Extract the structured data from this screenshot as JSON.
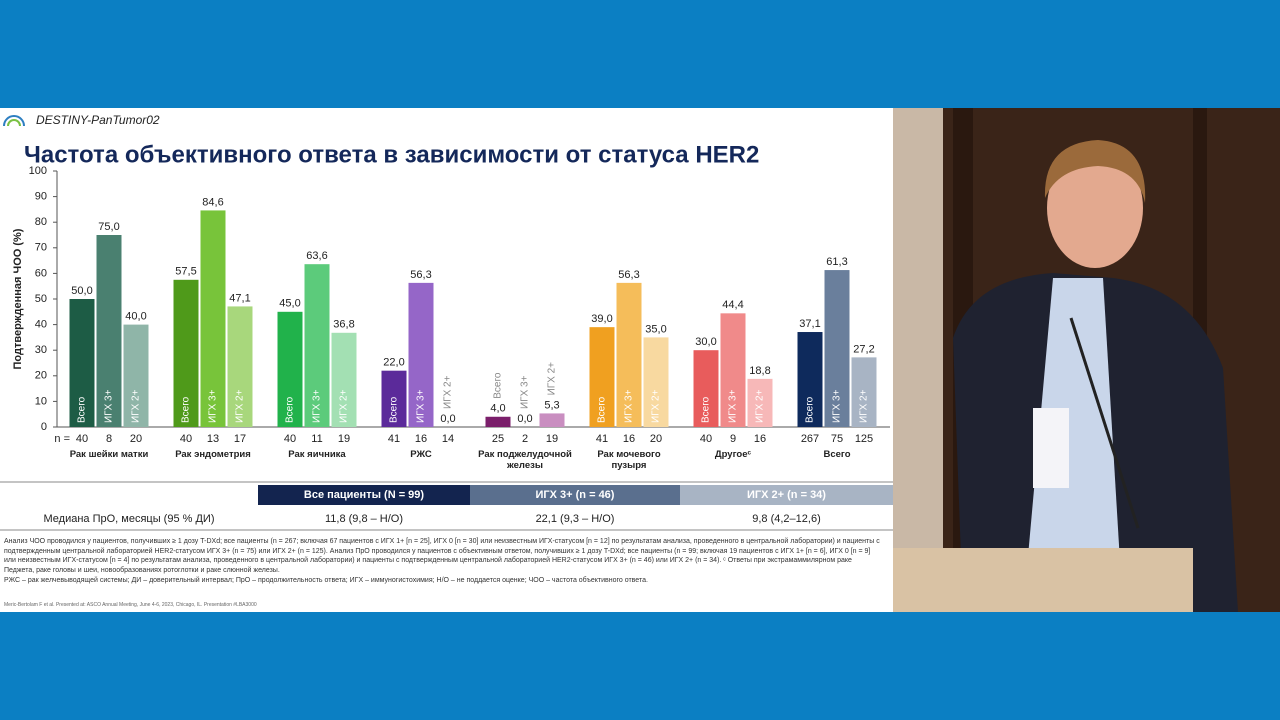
{
  "header": {
    "brand": "DESTINY-PanTumor02",
    "title": "Частота объективного ответа в зависимости от статуса HER2"
  },
  "chart_data": {
    "type": "grouped-bar",
    "y_label": "Подтвержденная ЧОО (%)",
    "ylim": [
      0,
      100
    ],
    "yticks": [
      0,
      10,
      20,
      30,
      40,
      50,
      60,
      70,
      80,
      90,
      100
    ],
    "grid": false,
    "n_label": "n =",
    "categories": [
      "Рак шейки матки",
      "Рак эндометрия",
      "Рак яичника",
      "РЖС",
      "Рак поджелудочной железы",
      "Рак мочевого пузыря",
      "Другоеᶜ",
      "Всего"
    ],
    "series": [
      {
        "name": "Всего",
        "values": [
          50,
          57.5,
          45,
          22,
          4,
          39,
          30,
          37.1
        ],
        "value_labels": [
          "50,0",
          "57,5",
          "45,0",
          "22,0",
          "4,0",
          "39,0",
          "30,0",
          "37,1"
        ],
        "n": [
          40,
          40,
          40,
          41,
          25,
          41,
          40,
          267
        ],
        "colors": [
          "#1d5c45",
          "#4f9a1a",
          "#21b24b",
          "#5b2a9a",
          "#7b1f6b",
          "#f0a020",
          "#e85c5c",
          "#0e2a5c"
        ]
      },
      {
        "name": "ИГХ 3+",
        "values": [
          75,
          84.6,
          63.6,
          56.3,
          0,
          56.3,
          44.4,
          61.3
        ],
        "value_labels": [
          "75,0",
          "84,6",
          "63,6",
          "56,3",
          "0,0",
          "56,3",
          "44,4",
          "61,3"
        ],
        "n": [
          8,
          13,
          11,
          16,
          2,
          16,
          9,
          75
        ],
        "colors": [
          "#4a8070",
          "#78c43a",
          "#5ccb7b",
          "#9566c8",
          "#b5579f",
          "#f5bd5a",
          "#f08a8a",
          "#6a7f9c"
        ]
      },
      {
        "name": "ИГХ 2+",
        "values": [
          40,
          47.1,
          36.8,
          0,
          5.3,
          35,
          18.8,
          27.2
        ],
        "value_labels": [
          "40,0",
          "47,1",
          "36,8",
          "0,0",
          "5,3",
          "35,0",
          "18,8",
          "27,2"
        ],
        "n": [
          20,
          17,
          19,
          14,
          19,
          20,
          16,
          125
        ],
        "colors": [
          "#8fb5a8",
          "#a8d77c",
          "#a3e0b3",
          "#c9b3e3",
          "#c98ec0",
          "#f8d9a0",
          "#f7b8b8",
          "#a8b4c4"
        ]
      }
    ]
  },
  "table": {
    "header": [
      "Все пациенты (N = 99)",
      "ИГХ 3+ (n = 46)",
      "ИГХ 2+ (n = 34)"
    ],
    "rows": [
      [
        "Медиана ПрО, месяцы (95 % ДИ)",
        "11,8 (9,8 – Н/О)",
        "22,1 (9,3 – Н/О)",
        "9,8 (4,2–12,6)"
      ]
    ]
  },
  "footnotes": [
    "Анализ ЧОО проводился у пациентов, получивших ≥ 1 дозу T-DXd; все пациенты (n = 267; включая 67 пациентов с ИГХ 1+ [n = 25], ИГХ 0 [n = 30] или неизвестным ИГХ-статусом [n = 12] по результатам анализа, проведенного в центральной лаборатории) и пациенты с подтвержденным центральной лабораторией HER2-статусом ИГХ 3+ (n = 75) или ИГХ 2+ (n = 125). Анализ ПрО проводился у пациентов с объективным ответом, получивших ≥ 1 дозу T-DXd; все пациенты (n = 99; включая 19 пациентов с ИГХ 1+ [n = 6], ИГХ 0 [n = 9] или неизвестным ИГХ-статусом [n = 4] по результатам анализа, проведенного в центральной лаборатории) и пациенты с подтвержденным центральной лабораторией HER2-статусом ИГХ 3+ (n = 46) или ИГХ 2+ (n = 34). ᶜ Ответы при экстрамаммилярном раке Педжета, раке головы и шеи, новообразованиях ротоглотки и раке слюнной железы.",
    "РЖС – рак желчевыводящей системы; ДИ – доверительный интервал; ПрО – продолжительность ответа; ИГХ – иммуногистохимия; Н/О – не поддается оценке; ЧОО – частота объективного ответа."
  ],
  "reference": "Meric-Bertolam F et al. Presented at: ASCO Annual Meeting, June 4-6, 2023, Chicago, IL. Presentation #LBA3000"
}
